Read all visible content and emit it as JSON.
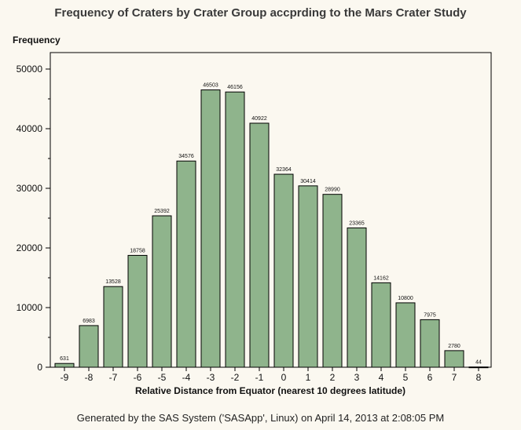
{
  "chart_data": {
    "type": "bar",
    "title": "Frequency of Craters by Crater Group accprding to the Mars Crater Study",
    "ylabel": "Frequency",
    "xlabel": "Relative Distance from Equator (nearest 10 degrees latitude)",
    "categories": [
      "-9",
      "-8",
      "-7",
      "-6",
      "-5",
      "-4",
      "-3",
      "-2",
      "-1",
      "0",
      "1",
      "2",
      "3",
      "4",
      "5",
      "6",
      "7",
      "8"
    ],
    "values": [
      631,
      6983,
      13528,
      18758,
      25392,
      34576,
      46503,
      46156,
      40922,
      32364,
      30414,
      28990,
      23365,
      14162,
      10800,
      7975,
      2780,
      44
    ],
    "ylim": [
      0,
      50000
    ],
    "yticks": [
      0,
      10000,
      20000,
      30000,
      40000,
      50000
    ],
    "bar_color": "#8fb48c",
    "grid": false,
    "data_labels": true
  },
  "footer": "Generated by the SAS System ('SASApp', Linux) on April 14, 2013 at 2:08:05 PM"
}
